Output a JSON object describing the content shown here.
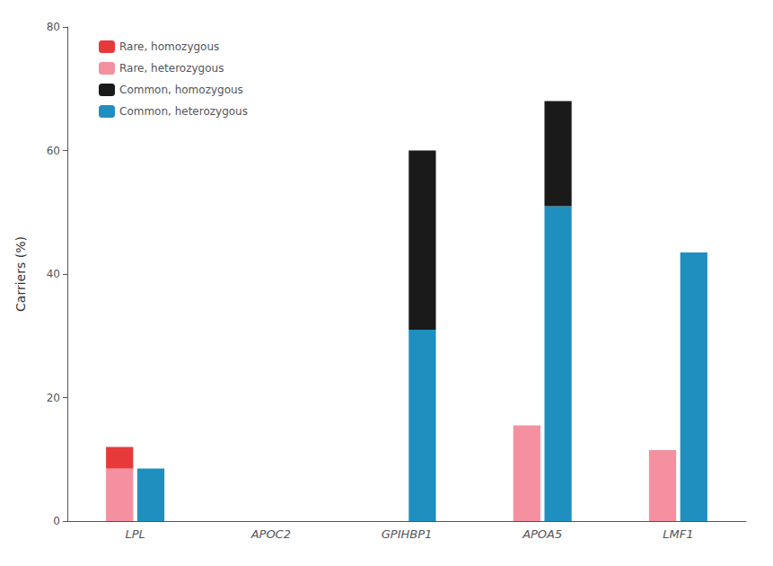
{
  "chart_data": {
    "type": "bar",
    "categories": [
      "LPL",
      "APOC2",
      "GPIHBP1",
      "APOA5",
      "LMF1"
    ],
    "series": [
      {
        "name": "Rare, homozygous",
        "color": "#e8393a",
        "values": [
          3.5,
          0,
          0,
          0,
          0
        ],
        "stacked": true
      },
      {
        "name": "Rare, heterozygous",
        "color": "#f4909f",
        "values": [
          8.5,
          0,
          0,
          15.5,
          11.5
        ]
      },
      {
        "name": "Common, homozygous",
        "color": "#1a1a1a",
        "values": [
          0,
          0,
          29,
          17,
          0
        ],
        "stacked": true
      },
      {
        "name": "Common, heterozygous",
        "color": "#1f8fc0",
        "values": [
          8.5,
          0,
          31,
          51,
          43.5
        ]
      }
    ],
    "ylabel": "Carriers (%)",
    "ylim": [
      0,
      80
    ],
    "yticks": [
      0,
      20,
      40,
      60,
      80
    ],
    "grid": false,
    "legend": "upper left"
  }
}
